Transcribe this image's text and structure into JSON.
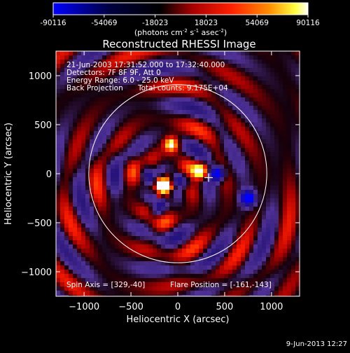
{
  "colorbar": {
    "ticks": [
      "-90116",
      "-54069",
      "-18023",
      "18023",
      "54069",
      "90116"
    ],
    "unit_base": "(photons cm",
    "unit_exp1": "-2",
    "unit_mid": " s",
    "unit_exp2": "-1",
    "unit_mid2": " asec",
    "unit_exp3": "-2",
    "unit_close": ")",
    "vmin": -90116,
    "vmax": 90116
  },
  "annotations": {
    "time_range": "21-Jun-2003 17:31:52.000 to 17:32:40.000",
    "detectors": "Detectors: 7F 8F 9F, Att 0",
    "energy_range": "Energy Range: 6.0 - 25.0 keV",
    "method": "Back Projection",
    "total_counts": "Total counts: 9.175E+04",
    "spin_axis": "Spin Axis = [329,-40]",
    "flare_position": "Flare Position = [-161,-143]"
  },
  "footer": {
    "timestamp": "9-Jun-2013 12:27"
  },
  "colors": {
    "background": "#000000",
    "axes": "#ffffff",
    "limb_circle": "#ffffff"
  },
  "chart_data": {
    "type": "heatmap",
    "title": "Reconstructed RHESSI Image",
    "xlabel": "Heliocentric X (arcsec)",
    "ylabel": "Heliocentric Y (arcsec)",
    "xlim": [
      -1300,
      1300
    ],
    "ylim": [
      -1250,
      1250
    ],
    "x_ticks": [
      -1000,
      -500,
      0,
      500,
      1000
    ],
    "x_tick_labels": [
      "−1000",
      "−500",
      "0",
      "500",
      "1000"
    ],
    "y_ticks": [
      -1000,
      -500,
      0,
      500,
      1000
    ],
    "y_tick_labels": [
      "−1000",
      "−500",
      "0",
      "500",
      "1000"
    ],
    "solar_limb": {
      "center": [
        0,
        0
      ],
      "radius": 950
    },
    "spin_axis": [
      329,
      -40
    ],
    "flare_position": [
      -161,
      -143
    ],
    "colormap": "RHESSI (blue-black-red-yellow-white)",
    "peak_sources": [
      {
        "x": -150,
        "y": -120,
        "level": "max"
      },
      {
        "x": 250,
        "y": 30,
        "level": "high"
      },
      {
        "x": -70,
        "y": 300,
        "level": "high"
      },
      {
        "x": 430,
        "y": 0,
        "level": "min"
      },
      {
        "x": 750,
        "y": -250,
        "level": "min"
      }
    ]
  }
}
